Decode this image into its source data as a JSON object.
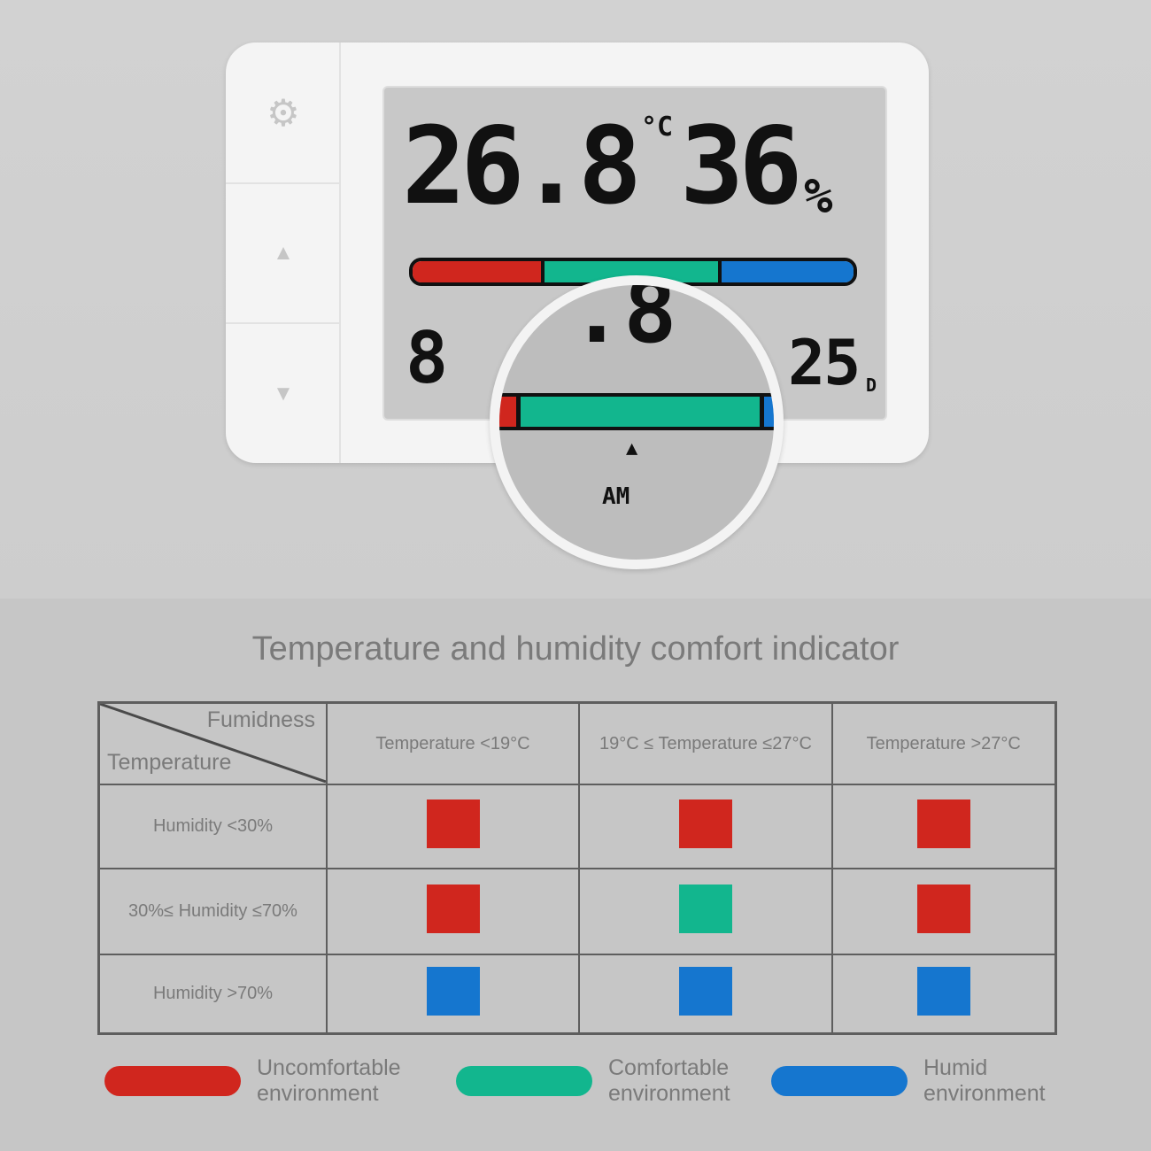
{
  "device": {
    "buttons": [
      {
        "icon": "gear-icon",
        "glyph": "⚙"
      },
      {
        "icon": "up-arrow-icon",
        "glyph": "▲"
      },
      {
        "icon": "down-arrow-icon",
        "glyph": "▼"
      }
    ],
    "temperature": "26.8",
    "temperature_unit": "°C",
    "humidity": "36",
    "humidity_unit": "%",
    "lower_left": "8",
    "lower_right": "25",
    "lower_right_unit": "D",
    "magnified": {
      "value": ".8",
      "am_label": "AM",
      "pointer": "▲"
    }
  },
  "colors": {
    "uncomfortable": "#d0261e",
    "comfortable": "#12b68e",
    "humid": "#1576cf"
  },
  "title": "Temperature and humidity comfort indicator",
  "table": {
    "corner_top": "Fumidness",
    "corner_bottom": "Temperature",
    "columns": [
      "Temperature <19°C",
      "19°C ≤ Temperature ≤27°C",
      "Temperature >27°C"
    ],
    "rows": [
      {
        "label": "Humidity <30%",
        "cells": [
          "uncomfortable",
          "uncomfortable",
          "uncomfortable"
        ]
      },
      {
        "label": "30%≤ Humidity ≤70%",
        "cells": [
          "uncomfortable",
          "comfortable",
          "uncomfortable"
        ]
      },
      {
        "label": "Humidity >70%",
        "cells": [
          "humid",
          "humid",
          "humid"
        ]
      }
    ]
  },
  "legend": [
    {
      "key": "uncomfortable",
      "line1": "Uncomfortable",
      "line2": "environment"
    },
    {
      "key": "comfortable",
      "line1": "Comfortable",
      "line2": "environment"
    },
    {
      "key": "humid",
      "line1": "Humid",
      "line2": "environment"
    }
  ]
}
